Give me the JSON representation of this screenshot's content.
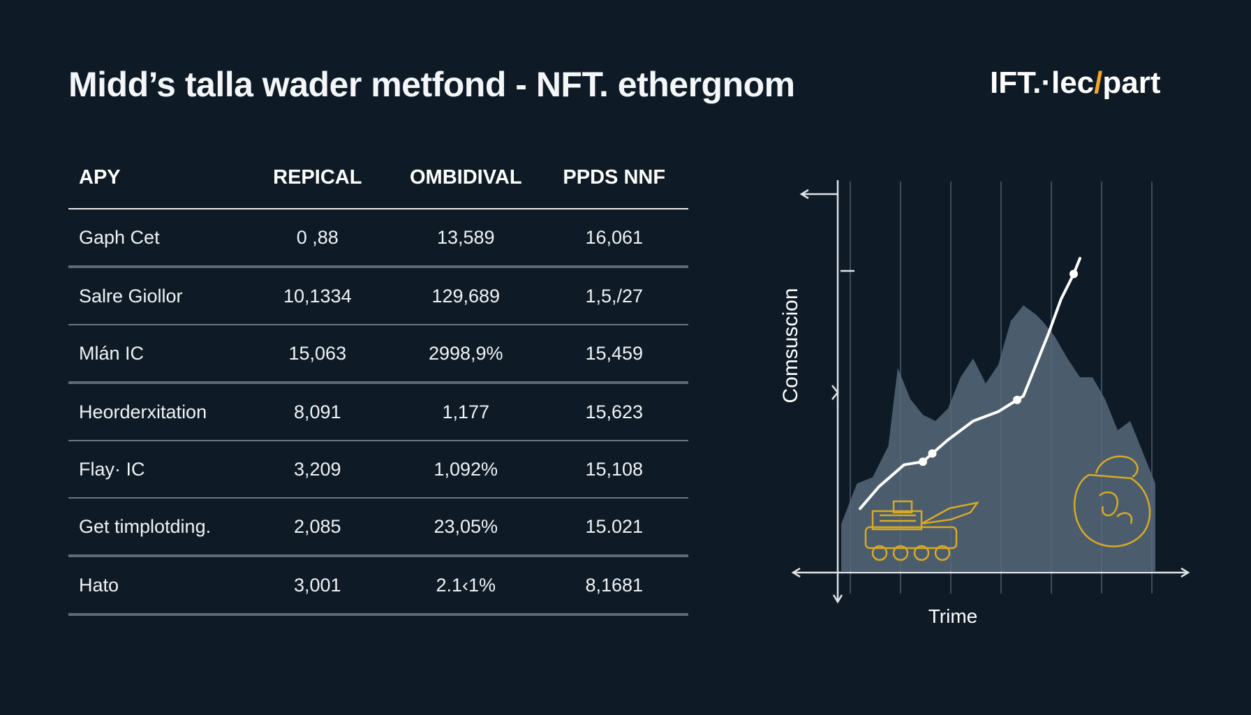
{
  "header": {
    "title": "Midd’s talla wader metfond - NFT. ethergnom",
    "logo_main": "IFT.·lec",
    "logo_slash": "/",
    "logo_tail": "part"
  },
  "table": {
    "columns": [
      "APY",
      "REPICAL",
      "OMBIDIVAL",
      "PPDS NNF"
    ],
    "rows": [
      {
        "label": "Gaph Cet",
        "values": [
          "0 ,88",
          "13,589",
          "16,061"
        ]
      },
      {
        "label": "Salre Giollor",
        "values": [
          "10,1334",
          "129,689",
          "1,5,/27"
        ]
      },
      {
        "label": "Mlán IC",
        "values": [
          "15,063",
          "2998,9%",
          "15,459"
        ]
      },
      {
        "label": "Heorderxitation",
        "values": [
          "8,091",
          "1,177",
          "15,623"
        ]
      },
      {
        "label": "Flay· IC",
        "values": [
          "3,209",
          "1,092%",
          "15,108"
        ]
      },
      {
        "label": "Get timplotding.",
        "values": [
          "2,085",
          "23,05%",
          "15.021"
        ]
      },
      {
        "label": "Hato",
        "values": [
          "3,001",
          "2.1‹1%",
          "8,1681"
        ]
      }
    ]
  },
  "chart_data": {
    "type": "area",
    "xlabel": "Trime",
    "ylabel": "Comsuscion",
    "xlim": [
      0,
      100
    ],
    "ylim": [
      0,
      100
    ],
    "grid": true,
    "series": [
      {
        "kind": "area",
        "x": [
          0,
          5,
          10,
          15,
          18,
          22,
          26,
          30,
          34,
          38,
          42,
          46,
          50,
          54,
          58,
          62,
          64,
          68,
          72,
          76,
          80,
          84,
          88,
          92,
          96,
          100
        ],
        "y": [
          15,
          28,
          30,
          40,
          65,
          55,
          50,
          48,
          52,
          62,
          68,
          60,
          66,
          80,
          85,
          82,
          80,
          75,
          68,
          62,
          62,
          55,
          45,
          48,
          38,
          28
        ],
        "color": "#56697a"
      },
      {
        "kind": "line",
        "x": [
          6,
          12,
          20,
          26,
          34,
          42,
          50,
          58,
          62,
          66,
          70,
          74,
          76
        ],
        "y": [
          20,
          27,
          34,
          35,
          42,
          48,
          51,
          56,
          66,
          76,
          87,
          95,
          100
        ],
        "markers_at": [
          26,
          29,
          56,
          74
        ],
        "color": "#ffffff"
      }
    ]
  },
  "colors": {
    "background": "#0e1b27",
    "accent": "#f5a623",
    "area": "#56697a",
    "axis": "#dfe3e7",
    "illustration": "#d9a925"
  }
}
